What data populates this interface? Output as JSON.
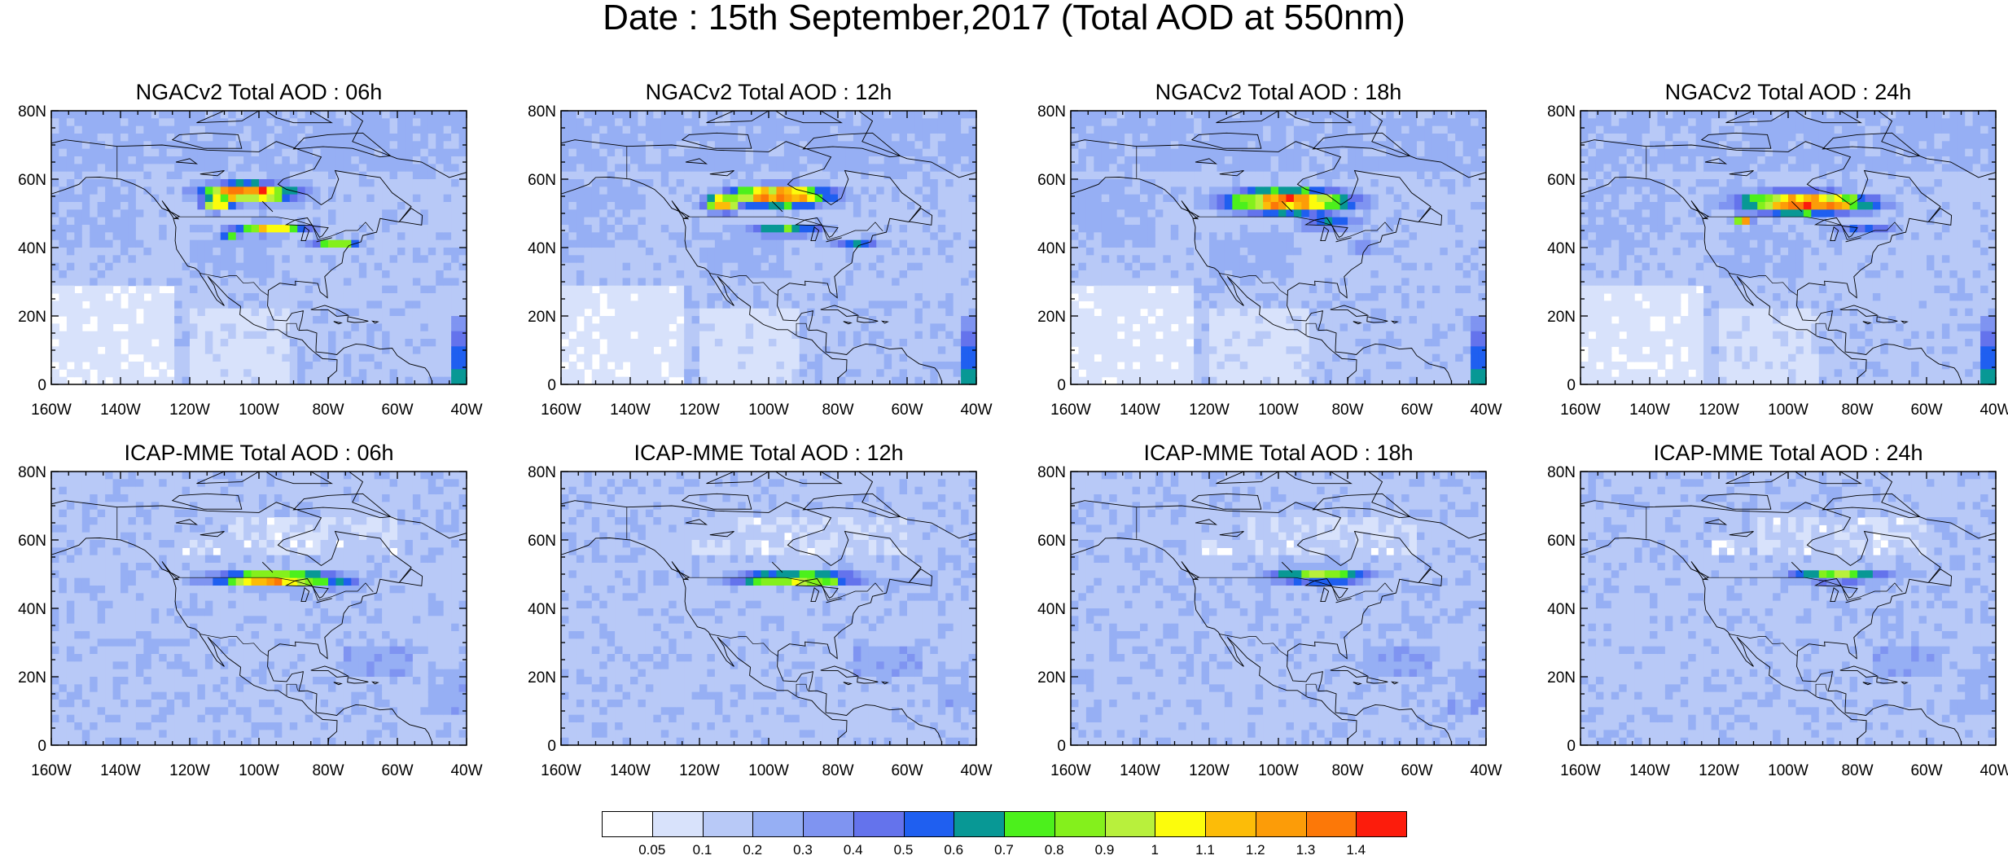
{
  "title": "Date : 15th September,2017 (Total AOD at 550nm)",
  "panels": [
    {
      "title": "NGACv2 Total AOD : 06h",
      "model": "NGACv2",
      "forecast_hour": 6
    },
    {
      "title": "NGACv2 Total AOD : 12h",
      "model": "NGACv2",
      "forecast_hour": 12
    },
    {
      "title": "NGACv2 Total AOD : 18h",
      "model": "NGACv2",
      "forecast_hour": 18
    },
    {
      "title": "NGACv2 Total AOD : 24h",
      "model": "NGACv2",
      "forecast_hour": 24
    },
    {
      "title": "ICAP-MME Total AOD : 06h",
      "model": "ICAP-MME",
      "forecast_hour": 6
    },
    {
      "title": "ICAP-MME Total AOD : 12h",
      "model": "ICAP-MME",
      "forecast_hour": 12
    },
    {
      "title": "ICAP-MME Total AOD : 18h",
      "model": "ICAP-MME",
      "forecast_hour": 18
    },
    {
      "title": "ICAP-MME Total AOD : 24h",
      "model": "ICAP-MME",
      "forecast_hour": 24
    }
  ],
  "axes": {
    "lat_ticks": [
      "0",
      "20N",
      "40N",
      "60N",
      "80N"
    ],
    "lon_ticks": [
      "160W",
      "140W",
      "120W",
      "100W",
      "80W",
      "60W",
      "40W"
    ],
    "lat_range": [
      0,
      80
    ],
    "lon_range": [
      -160,
      -40
    ]
  },
  "colorbar": {
    "labels": [
      "0.05",
      "0.1",
      "0.2",
      "0.3",
      "0.4",
      "0.5",
      "0.6",
      "0.7",
      "0.8",
      "0.9",
      "1",
      "1.1",
      "1.2",
      "1.3",
      "1.4"
    ],
    "colors": [
      "#ffffff",
      "#d8e2fb",
      "#b8c9f7",
      "#96aff4",
      "#7f94f1",
      "#6473ec",
      "#1f5ff0",
      "#089895",
      "#4cf01c",
      "#84f01c",
      "#b8f03c",
      "#fcfc0c",
      "#fcbc08",
      "#fc9c08",
      "#fc7808",
      "#fc1c0c"
    ]
  },
  "plumes": {
    "ngac_06": [
      {
        "lon": -103,
        "lat": 56,
        "rlon": 15,
        "rlat": 3.2,
        "v": 1.45
      },
      {
        "lon": -112,
        "lat": 53,
        "rlon": 5,
        "rlat": 2.5,
        "v": 1.3
      },
      {
        "lon": -97,
        "lat": 45.5,
        "rlon": 13,
        "rlat": 2,
        "v": 1.05
      },
      {
        "lon": -78,
        "lat": 41,
        "rlon": 8,
        "rlat": 1.5,
        "v": 0.9
      },
      {
        "lon": -108,
        "lat": 43,
        "rlon": 3,
        "rlat": 2,
        "v": 0.8
      }
    ],
    "ngac_12": [
      {
        "lon": -97,
        "lat": 55,
        "rlon": 17,
        "rlat": 3.5,
        "v": 1.4
      },
      {
        "lon": -113,
        "lat": 53,
        "rlon": 6,
        "rlat": 3,
        "v": 1.3
      },
      {
        "lon": -95,
        "lat": 45,
        "rlon": 12,
        "rlat": 2,
        "v": 0.85
      },
      {
        "lon": -75,
        "lat": 41,
        "rlon": 8,
        "rlat": 1.5,
        "v": 0.7
      }
    ],
    "ngac_18": [
      {
        "lon": -97,
        "lat": 53.5,
        "rlon": 20,
        "rlat": 4,
        "v": 1.4
      },
      {
        "lon": -85,
        "lat": 47,
        "rlon": 12,
        "rlat": 2,
        "v": 0.7
      },
      {
        "lon": -75,
        "lat": 40,
        "rlon": 7,
        "rlat": 1.5,
        "v": 0.6
      }
    ],
    "ngac_24": [
      {
        "lon": -95,
        "lat": 53,
        "rlon": 21,
        "rlat": 3.5,
        "v": 1.45
      },
      {
        "lon": -113,
        "lat": 48,
        "rlon": 3,
        "rlat": 2,
        "v": 1.2
      },
      {
        "lon": -78,
        "lat": 45,
        "rlon": 12,
        "rlat": 2,
        "v": 0.6
      }
    ],
    "icap_06": [
      {
        "lon": -95,
        "lat": 48.5,
        "rlon": 21,
        "rlat": 2.5,
        "v": 1.25
      },
      {
        "lon": -78,
        "lat": 47,
        "rlon": 10,
        "rlat": 1.5,
        "v": 0.8
      }
    ],
    "icap_12": [
      {
        "lon": -92,
        "lat": 48.5,
        "rlon": 21,
        "rlat": 2.5,
        "v": 1.05
      },
      {
        "lon": -60,
        "lat": 47,
        "rlon": 13,
        "rlat": 1,
        "v": 0.55
      }
    ],
    "icap_18": [
      {
        "lon": -88,
        "lat": 49.5,
        "rlon": 17,
        "rlat": 2.5,
        "v": 0.95
      },
      {
        "lon": -58,
        "lat": 46.5,
        "rlon": 12,
        "rlat": 1,
        "v": 0.65
      }
    ],
    "icap_24": [
      {
        "lon": -85,
        "lat": 49.5,
        "rlon": 17,
        "rlat": 2,
        "v": 0.9
      },
      {
        "lon": -55,
        "lat": 46.5,
        "rlon": 14,
        "rlat": 1,
        "v": 0.55
      }
    ]
  }
}
